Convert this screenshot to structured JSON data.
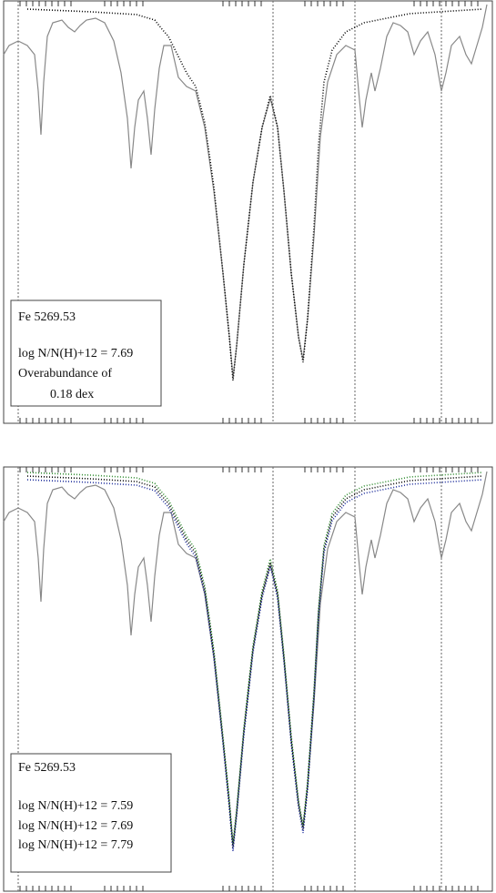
{
  "panels": [
    {
      "legend": {
        "line": "Fe 5269.53",
        "abundance": "log N/N(H)+12 = 7.69",
        "note": "Overabundance  of",
        "dex": "0.18 dex"
      }
    },
    {
      "legend": {
        "line": "Fe 5269.53",
        "abundances": [
          "log N/N(H)+12 = 7.59",
          "log N/N(H)+12 = 7.69",
          "log N/N(H)+12 = 7.79"
        ]
      }
    }
  ]
}
